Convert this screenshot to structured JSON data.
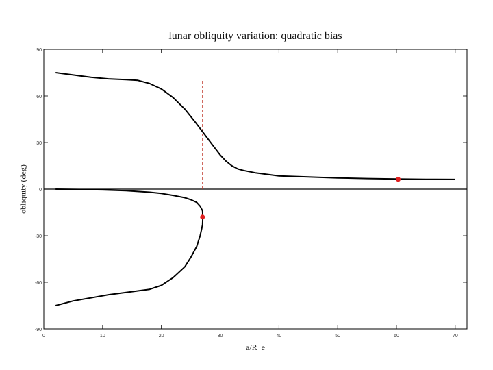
{
  "chart_data": {
    "type": "line",
    "title": "lunar obliquity variation: quadratic bias",
    "xlabel": "a/R_e",
    "ylabel": "obliquity (deg)",
    "xlim": [
      0,
      72
    ],
    "ylim": [
      -90,
      90
    ],
    "x_ticks": [
      0,
      10,
      20,
      30,
      40,
      50,
      60,
      70
    ],
    "y_ticks": [
      -90,
      -60,
      -30,
      0,
      30,
      60,
      90
    ],
    "x_tick_labels": [
      "0",
      "10",
      "20",
      "30",
      "40",
      "50",
      "60",
      "70"
    ],
    "y_tick_labels": [
      "-90",
      "-60",
      "-30",
      "0",
      "30",
      "60",
      "90"
    ],
    "grid": false,
    "series": [
      {
        "x": [
          2,
          5,
          8,
          11,
          14,
          16,
          18,
          20,
          22,
          24,
          26,
          27,
          28,
          29,
          30,
          31,
          32,
          33,
          34,
          36,
          38,
          40,
          45,
          50,
          55,
          60,
          65,
          70
        ],
        "values": [
          75,
          73.5,
          72,
          71,
          70.5,
          70,
          68,
          64.5,
          59,
          51.5,
          42,
          37,
          32,
          27,
          22,
          18,
          15,
          13,
          12,
          10.5,
          9.5,
          8.5,
          7.8,
          7.2,
          6.8,
          6.5,
          6.3,
          6.2
        ]
      },
      {
        "x": [
          2,
          6,
          10,
          14,
          18,
          20,
          22,
          24,
          25,
          26,
          26.6,
          27,
          27.05
        ],
        "values": [
          0,
          -0.2,
          -0.5,
          -1,
          -2,
          -2.8,
          -4,
          -5.5,
          -6.8,
          -8.5,
          -11,
          -14,
          -18
        ]
      },
      {
        "x": [
          27.05,
          27,
          26.6,
          26,
          25,
          24,
          22,
          20,
          18,
          16,
          14,
          11,
          8,
          5,
          2
        ],
        "values": [
          -18,
          -23,
          -30,
          -37,
          -44,
          -50,
          -57,
          -62,
          -64.5,
          -65.5,
          -66.5,
          -68,
          -70,
          -72,
          -75
        ]
      }
    ],
    "reference_line": {
      "x": 27,
      "y_range": [
        0,
        70
      ],
      "style": "dashed",
      "color": "#c0392b"
    },
    "horizontal_line": {
      "y": 0
    },
    "points": [
      {
        "x": 27,
        "y": -18,
        "color": "#e02020"
      },
      {
        "x": 60.3,
        "y": 6.3,
        "color": "#e02020"
      }
    ],
    "line_color": "#000000"
  }
}
